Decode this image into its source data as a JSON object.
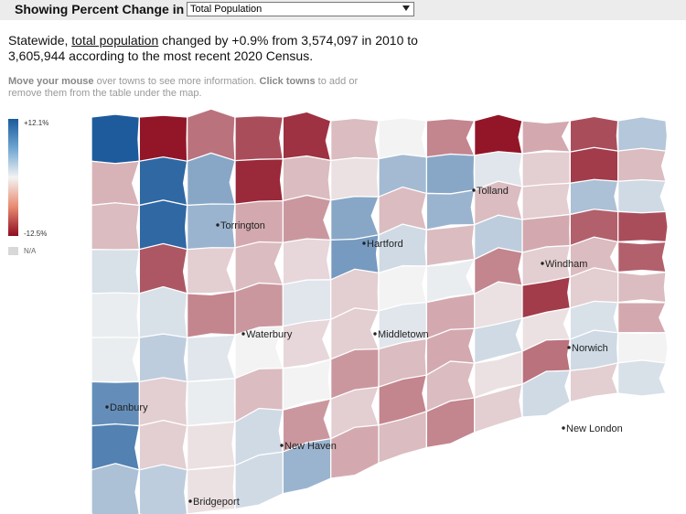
{
  "header": {
    "label": "Showing Percent Change in",
    "selected_measure": "Total Population"
  },
  "summary": {
    "prefix": "Statewide, ",
    "link": "total population",
    "text": " changed by +0.9% from 3,574,097 in 2010 to 3,605,944 according to the most recent 2020 Census."
  },
  "help": {
    "b1": "Move your mouse",
    "t1": " over towns to see more information. ",
    "b2": "Click towns",
    "t2": " to add or remove them from the table under the map."
  },
  "legend": {
    "max": "+12.1%",
    "min": "-12.5%",
    "na": "N/A"
  },
  "colors": {
    "max": "#1b5a9b",
    "mid": "#f3f3f3",
    "min": "#8e0d20",
    "na": "#d8d8d8"
  },
  "cities": [
    "Torrington",
    "Hartford",
    "Tolland",
    "Windham",
    "Waterbury",
    "Middletown",
    "Norwich",
    "Danbury",
    "New Haven",
    "New London",
    "Bridgeport"
  ],
  "towns": [
    {
      "v": 12.0
    },
    {
      "v": -12.0
    },
    {
      "v": -7.0
    },
    {
      "v": -9.0
    },
    {
      "v": -10.5
    },
    {
      "v": -3.0
    },
    {
      "v": 0.0
    },
    {
      "v": -6.0
    },
    {
      "v": -12.0
    },
    {
      "v": -4.0
    },
    {
      "v": -9.0
    },
    {
      "v": 3.5
    },
    {
      "v": -3.5
    },
    {
      "v": 11.0
    },
    {
      "v": 6.0
    },
    {
      "v": -11.0
    },
    {
      "v": -3.0
    },
    {
      "v": -1.0
    },
    {
      "v": 4.5
    },
    {
      "v": 6.0
    },
    {
      "v": 1.0
    },
    {
      "v": -2.0
    },
    {
      "v": -10.0
    },
    {
      "v": -3.0
    },
    {
      "v": -3.0
    },
    {
      "v": 11.0
    },
    {
      "v": 5.0
    },
    {
      "v": -4.0
    },
    {
      "v": -5.0
    },
    {
      "v": 6.0
    },
    {
      "v": -3.0
    },
    {
      "v": 5.0
    },
    {
      "v": -3.0
    },
    {
      "v": -2.0
    },
    {
      "v": 4.0
    },
    {
      "v": 2.0
    },
    {
      "v": 1.5
    },
    {
      "v": -8.5
    },
    {
      "v": -2.0
    },
    {
      "v": -3.0
    },
    {
      "v": -1.5
    },
    {
      "v": 7.0
    },
    {
      "v": 2.0
    },
    {
      "v": -3.0
    },
    {
      "v": 3.0
    },
    {
      "v": -4.0
    },
    {
      "v": -8.0
    },
    {
      "v": -9.0
    },
    {
      "v": 0.5
    },
    {
      "v": 1.5
    },
    {
      "v": -6.0
    },
    {
      "v": -5.0
    },
    {
      "v": 1.0
    },
    {
      "v": -2.0
    },
    {
      "v": 0.0
    },
    {
      "v": 0.5
    },
    {
      "v": -6.0
    },
    {
      "v": -2.0
    },
    {
      "v": -3.0
    },
    {
      "v": -8.0
    },
    {
      "v": 0.5
    },
    {
      "v": 3.0
    },
    {
      "v": 1.0
    },
    {
      "v": 0.0
    },
    {
      "v": -1.5
    },
    {
      "v": -2.0
    },
    {
      "v": 1.0
    },
    {
      "v": -4.0
    },
    {
      "v": -1.0
    },
    {
      "v": -10.0
    },
    {
      "v": -2.0
    },
    {
      "v": -3.0
    },
    {
      "v": 8.0
    },
    {
      "v": -2.0
    },
    {
      "v": 0.5
    },
    {
      "v": -3.0
    },
    {
      "v": 0.0
    },
    {
      "v": -5.0
    },
    {
      "v": -3.0
    },
    {
      "v": -4.0
    },
    {
      "v": 2.0
    },
    {
      "v": -1.0
    },
    {
      "v": 1.5
    },
    {
      "v": -4.0
    },
    {
      "v": 9.0
    },
    {
      "v": -2.0
    },
    {
      "v": -1.0
    },
    {
      "v": 2.0
    },
    {
      "v": -5.0
    },
    {
      "v": -2.0
    },
    {
      "v": -6.0
    },
    {
      "v": -3.0
    },
    {
      "v": -1.0
    },
    {
      "v": -7.0
    },
    {
      "v": 2.0
    },
    {
      "v": 0.0
    },
    {
      "v": 4.0
    },
    {
      "v": 3.0
    },
    {
      "v": -1.0
    },
    {
      "v": 2.0
    },
    {
      "v": 5.0
    },
    {
      "v": -4.0
    },
    {
      "v": -3.0
    },
    {
      "v": -6.0
    },
    {
      "v": -2.0
    },
    {
      "v": 2.0
    },
    {
      "v": -2.0
    },
    {
      "v": 1.5
    }
  ]
}
